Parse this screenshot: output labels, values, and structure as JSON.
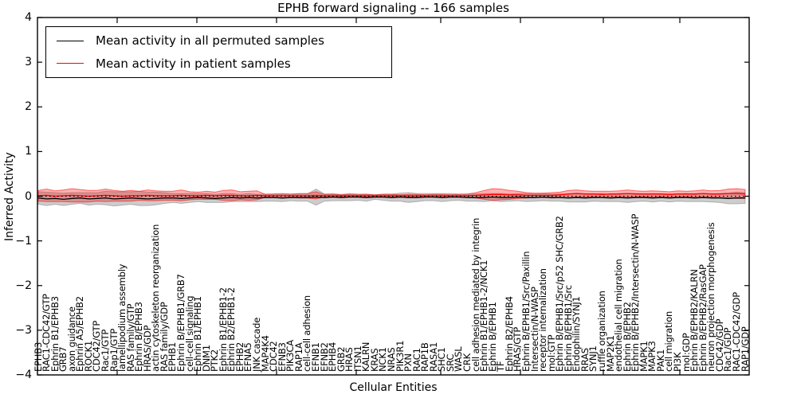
{
  "figure": {
    "title": "EPHB forward signaling -- 166 samples",
    "xlabel": "Cellular Entities",
    "ylabel": "Inferred Activity",
    "legend": {
      "items": [
        {
          "label": "Mean activity in all permuted samples",
          "color": "#000000"
        },
        {
          "label": "Mean activity in patient samples",
          "color": "#ff0000"
        }
      ]
    }
  },
  "chart_data": {
    "type": "line",
    "title": "EPHB forward signaling -- 166 samples",
    "xlabel": "Cellular Entities",
    "ylabel": "Inferred Activity",
    "ylim": [
      -4,
      4
    ],
    "yticks": [
      4,
      3,
      2,
      1,
      0,
      -1,
      -2,
      -3,
      -4
    ],
    "grid": false,
    "legend_position": "upper left",
    "zero_line": "black dotted at y=0",
    "band_meaning": "shaded region = mean ± std for each series",
    "categories": [
      "EPHB3",
      "RAC1-CDC42/GTP",
      "Ephrin B1/EPHB3",
      "GRB7",
      "axon guidance",
      "Ephrin A5/EPHB2",
      "ROCK1",
      "CDC42/GTP",
      "Rac1/GTP",
      "Rap1/GTP",
      "lamellipodium assembly",
      "RAS family/GTP",
      "Ephrin B/EPHB3",
      "HRAS/GDP",
      "actin cytoskeleton reorganization",
      "RAS family/GDP",
      "EPHB1",
      "Ephrin B/EPHB1/GRB7",
      "cell-cell signaling",
      "Ephrin B1/EPHB1",
      "DNM1",
      "PTK2",
      "Ephrin B1/EPHB1-2",
      "Ephrin B2/EPHB1-2",
      "EPHB2",
      "EFNA5",
      "JNK cascade",
      "MAP4K4",
      "CDC42",
      "EFNB3",
      "PIK3CA",
      "RAP1A",
      "cell-cell adhesion",
      "EFNB1",
      "EFNB2",
      "EPHB4",
      "GRB2",
      "HRAS",
      "ITSN1",
      "KALRN",
      "KRAS",
      "NCK1",
      "NRAS",
      "PIK3R1",
      "PXN",
      "RAC1",
      "RAP1B",
      "RASA1",
      "SHC1",
      "SRC",
      "WASL",
      "CRK",
      "cell adhesion mediated by integrin",
      "Ephrin B1/EPHB1-2/NCK1",
      "Ephrin B/EPHB1",
      "TF",
      "Ephrin B2/EPHB4",
      "HRAS/GTP",
      "Ephrin B/EPHB1/Src/Paxillin",
      "Intersectin/N-WASP",
      "receptor internalization",
      "mol:GTP",
      "Ephrin B/EPHB1/Src/p52 SHC/GRB2",
      "Ephrin B/EPHB1/Src",
      "Endophilin/SYNJ1",
      "RRAS",
      "SYNJ1",
      "ruffle organization",
      "MAP2K1",
      "endothelial cell migration",
      "Ephrin B/EPHB2",
      "Ephrin B/EPHB2/Intersectin/N-WASP",
      "MAPK1",
      "MAPK3",
      "PAK1",
      "cell migration",
      "PI3K",
      "mol:GDP",
      "Ephrin B/EPHB2/KALRN",
      "Ephrin B/EPHB2/RasGAP",
      "neuron projection morphogenesis",
      "CDC42/GDP",
      "Rac1/GDP",
      "RAC1-CDC42/GDP",
      "RAP1/GDP"
    ],
    "series": [
      {
        "name": "Mean activity in all permuted samples",
        "color": "#000000",
        "band_color": "rgba(130,130,130,0.4)",
        "values": [
          -0.04,
          -0.06,
          -0.05,
          -0.07,
          -0.05,
          -0.04,
          -0.06,
          -0.05,
          -0.04,
          -0.06,
          -0.05,
          -0.04,
          -0.05,
          -0.06,
          -0.05,
          -0.04,
          -0.04,
          -0.05,
          -0.04,
          -0.03,
          -0.04,
          -0.05,
          -0.04,
          -0.03,
          -0.04,
          -0.03,
          -0.04,
          -0.03,
          -0.03,
          -0.04,
          -0.03,
          -0.03,
          -0.03,
          -0.02,
          -0.03,
          -0.02,
          -0.03,
          -0.02,
          -0.02,
          -0.03,
          -0.02,
          -0.02,
          -0.03,
          -0.02,
          -0.03,
          -0.03,
          -0.02,
          -0.02,
          -0.03,
          -0.02,
          -0.02,
          -0.03,
          -0.03,
          -0.03,
          -0.02,
          -0.03,
          -0.03,
          -0.02,
          -0.03,
          -0.03,
          -0.02,
          -0.03,
          -0.03,
          -0.04,
          -0.03,
          -0.04,
          -0.03,
          -0.03,
          -0.04,
          -0.03,
          -0.04,
          -0.03,
          -0.03,
          -0.04,
          -0.03,
          -0.04,
          -0.03,
          -0.03,
          -0.04,
          -0.03,
          -0.04,
          -0.04,
          -0.05,
          -0.04,
          -0.04
        ],
        "std": [
          0.14,
          0.15,
          0.13,
          0.14,
          0.13,
          0.12,
          0.14,
          0.13,
          0.15,
          0.16,
          0.15,
          0.14,
          0.16,
          0.15,
          0.14,
          0.12,
          0.1,
          0.11,
          0.1,
          0.09,
          0.1,
          0.09,
          0.1,
          0.09,
          0.08,
          0.09,
          0.08,
          0.08,
          0.08,
          0.08,
          0.07,
          0.08,
          0.08,
          0.18,
          0.08,
          0.08,
          0.07,
          0.08,
          0.07,
          0.08,
          0.05,
          0.07,
          0.08,
          0.09,
          0.11,
          0.09,
          0.08,
          0.08,
          0.09,
          0.08,
          0.07,
          0.08,
          0.08,
          0.09,
          0.08,
          0.09,
          0.08,
          0.08,
          0.09,
          0.08,
          0.08,
          0.08,
          0.08,
          0.09,
          0.1,
          0.09,
          0.08,
          0.09,
          0.08,
          0.09,
          0.1,
          0.09,
          0.08,
          0.09,
          0.08,
          0.09,
          0.08,
          0.09,
          0.08,
          0.09,
          0.09,
          0.1,
          0.12,
          0.13,
          0.12
        ]
      },
      {
        "name": "Mean activity in patient samples",
        "color": "#ff0000",
        "band_color": "rgba(255,0,0,0.3)",
        "values": [
          0.01,
          0.02,
          0.0,
          0.01,
          0.02,
          0.01,
          0.0,
          0.01,
          0.02,
          0.01,
          0.0,
          0.01,
          0.01,
          0.02,
          0.01,
          0.01,
          0.01,
          0.02,
          0.01,
          0.01,
          0.02,
          0.01,
          0.02,
          0.02,
          0.01,
          0.01,
          0.02,
          0.01,
          0.01,
          0.01,
          0.01,
          0.01,
          0.01,
          0.02,
          0.01,
          0.01,
          0.01,
          0.01,
          0.01,
          0.01,
          0.01,
          0.01,
          0.01,
          0.01,
          0.01,
          0.01,
          0.01,
          0.01,
          0.01,
          0.01,
          0.01,
          0.01,
          0.02,
          0.03,
          0.04,
          0.04,
          0.03,
          0.03,
          0.02,
          0.02,
          0.02,
          0.02,
          0.03,
          0.05,
          0.06,
          0.05,
          0.05,
          0.04,
          0.05,
          0.05,
          0.06,
          0.05,
          0.05,
          0.05,
          0.05,
          0.04,
          0.05,
          0.05,
          0.05,
          0.06,
          0.05,
          0.05,
          0.06,
          0.06,
          0.05
        ],
        "std": [
          0.12,
          0.14,
          0.12,
          0.13,
          0.15,
          0.14,
          0.13,
          0.12,
          0.14,
          0.12,
          0.11,
          0.12,
          0.1,
          0.12,
          0.11,
          0.1,
          0.1,
          0.12,
          0.09,
          0.08,
          0.09,
          0.08,
          0.11,
          0.12,
          0.09,
          0.1,
          0.1,
          0.03,
          0.04,
          0.05,
          0.04,
          0.05,
          0.05,
          0.08,
          0.03,
          0.03,
          0.02,
          0.03,
          0.02,
          0.03,
          0.02,
          0.03,
          0.03,
          0.02,
          0.03,
          0.03,
          0.02,
          0.03,
          0.03,
          0.02,
          0.03,
          0.04,
          0.06,
          0.1,
          0.13,
          0.12,
          0.1,
          0.08,
          0.06,
          0.05,
          0.05,
          0.06,
          0.06,
          0.08,
          0.08,
          0.07,
          0.06,
          0.07,
          0.06,
          0.07,
          0.08,
          0.07,
          0.06,
          0.07,
          0.06,
          0.06,
          0.07,
          0.06,
          0.07,
          0.08,
          0.07,
          0.08,
          0.1,
          0.11,
          0.1
        ]
      }
    ]
  }
}
